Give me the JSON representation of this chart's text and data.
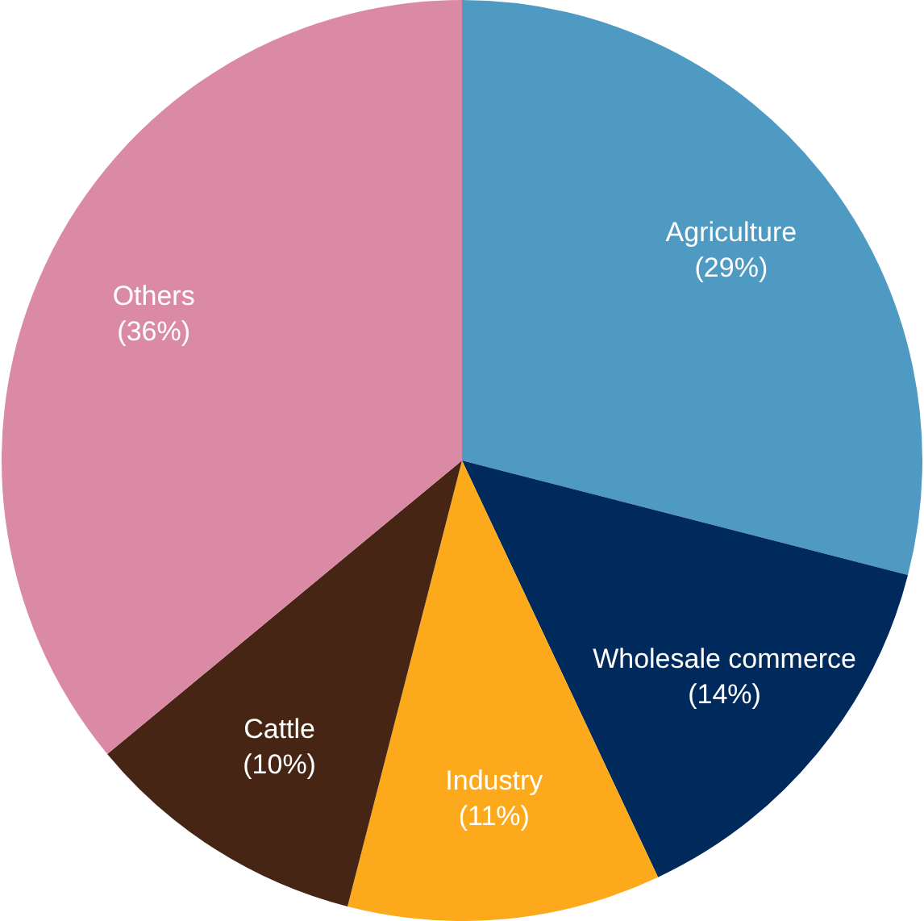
{
  "chart_data": {
    "type": "pie",
    "categories": [
      "Agriculture",
      "Wholesale commerce",
      "Industry",
      "Cattle",
      "Others"
    ],
    "values": [
      29,
      14,
      11,
      10,
      36
    ],
    "colors": [
      "#4f9ac2",
      "#002a5c",
      "#fcaa1b",
      "#472515",
      "#db8aa5"
    ],
    "value_labels": [
      "(29%)",
      "(14%)",
      "(11%)",
      "(10%)",
      "(36%)"
    ],
    "legend": false
  }
}
